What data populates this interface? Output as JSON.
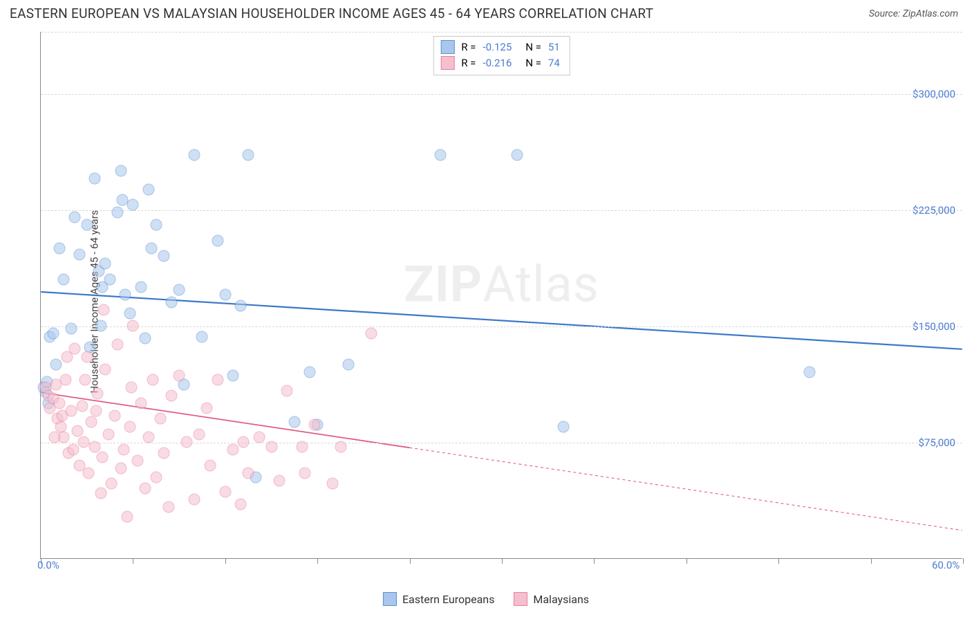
{
  "title": "EASTERN EUROPEAN VS MALAYSIAN HOUSEHOLDER INCOME AGES 45 - 64 YEARS CORRELATION CHART",
  "source": "Source: ZipAtlas.com",
  "ylabel": "Householder Income Ages 45 - 64 years",
  "watermark_a": "ZIP",
  "watermark_b": "Atlas",
  "chart": {
    "type": "scatter",
    "xlim": [
      0,
      60
    ],
    "ylim": [
      0,
      340000
    ],
    "x_left_label": "0.0%",
    "x_right_label": "60.0%",
    "y_ticks": [
      75000,
      150000,
      225000,
      300000
    ],
    "y_tick_labels": [
      "$75,000",
      "$150,000",
      "$225,000",
      "$300,000"
    ],
    "x_tick_positions": [
      0,
      6,
      12,
      18,
      24,
      30,
      36,
      42,
      48,
      54,
      60
    ],
    "grid_color": "#d8d8d8",
    "axis_color": "#888888",
    "ylabel_color": "#4a7bd0",
    "xlabel_color": "#4a7bd0",
    "background": "#ffffff",
    "point_radius": 8.5,
    "point_opacity": 0.55,
    "series": [
      {
        "name": "Eastern Europeans",
        "fill": "#a9c7ec",
        "stroke": "#5b8fd4",
        "line_color": "#3b78c9",
        "line_width": 2.2,
        "line_dash": "none",
        "trend": {
          "x1": 0,
          "y1": 172000,
          "x2": 60,
          "y2": 135000
        },
        "R": "-0.125",
        "N": "51",
        "points": [
          [
            0.2,
            110000
          ],
          [
            0.3,
            107000
          ],
          [
            0.4,
            114000
          ],
          [
            0.5,
            100000
          ],
          [
            0.6,
            143000
          ],
          [
            0.8,
            145000
          ],
          [
            1.0,
            125000
          ],
          [
            1.2,
            200000
          ],
          [
            1.5,
            180000
          ],
          [
            2.0,
            148000
          ],
          [
            2.2,
            220000
          ],
          [
            2.5,
            196000
          ],
          [
            3.0,
            215000
          ],
          [
            3.2,
            136000
          ],
          [
            3.5,
            245000
          ],
          [
            3.8,
            185000
          ],
          [
            4.0,
            175000
          ],
          [
            4.2,
            190000
          ],
          [
            4.5,
            180000
          ],
          [
            5.0,
            223000
          ],
          [
            5.3,
            231000
          ],
          [
            5.5,
            170000
          ],
          [
            5.8,
            158000
          ],
          [
            6.0,
            228000
          ],
          [
            6.5,
            175000
          ],
          [
            7.0,
            238000
          ],
          [
            7.2,
            200000
          ],
          [
            7.5,
            215000
          ],
          [
            8.0,
            195000
          ],
          [
            8.5,
            165000
          ],
          [
            9.0,
            173000
          ],
          [
            9.3,
            112000
          ],
          [
            10.0,
            260000
          ],
          [
            10.5,
            143000
          ],
          [
            11.5,
            205000
          ],
          [
            12.0,
            170000
          ],
          [
            12.5,
            118000
          ],
          [
            13.0,
            163000
          ],
          [
            13.5,
            260000
          ],
          [
            14.0,
            52000
          ],
          [
            16.5,
            88000
          ],
          [
            17.5,
            120000
          ],
          [
            18.0,
            86000
          ],
          [
            20.0,
            125000
          ],
          [
            26.0,
            260000
          ],
          [
            31.0,
            260000
          ],
          [
            34.0,
            85000
          ],
          [
            50.0,
            120000
          ],
          [
            5.2,
            250000
          ],
          [
            3.9,
            150000
          ],
          [
            6.8,
            142000
          ]
        ]
      },
      {
        "name": "Malaysians",
        "fill": "#f5bfcd",
        "stroke": "#e97fa0",
        "line_color": "#e05b84",
        "line_width": 1.8,
        "line_dash": "4 4",
        "solid_until_x": 24,
        "trend": {
          "x1": 0,
          "y1": 107000,
          "x2": 60,
          "y2": 18000
        },
        "R": "-0.216",
        "N": "74",
        "points": [
          [
            0.3,
            110000
          ],
          [
            0.5,
            105000
          ],
          [
            0.6,
            97000
          ],
          [
            0.8,
            103000
          ],
          [
            1.0,
            112000
          ],
          [
            1.1,
            90000
          ],
          [
            1.2,
            100000
          ],
          [
            1.3,
            85000
          ],
          [
            1.4,
            92000
          ],
          [
            1.5,
            78000
          ],
          [
            1.6,
            115000
          ],
          [
            1.8,
            68000
          ],
          [
            2.0,
            95000
          ],
          [
            2.1,
            70000
          ],
          [
            2.2,
            135000
          ],
          [
            2.4,
            82000
          ],
          [
            2.5,
            60000
          ],
          [
            2.7,
            98000
          ],
          [
            2.8,
            75000
          ],
          [
            3.0,
            130000
          ],
          [
            3.1,
            55000
          ],
          [
            3.3,
            88000
          ],
          [
            3.5,
            72000
          ],
          [
            3.7,
            106000
          ],
          [
            3.9,
            42000
          ],
          [
            4.0,
            65000
          ],
          [
            4.2,
            122000
          ],
          [
            4.4,
            80000
          ],
          [
            4.6,
            48000
          ],
          [
            4.8,
            92000
          ],
          [
            5.0,
            138000
          ],
          [
            5.2,
            58000
          ],
          [
            5.4,
            70000
          ],
          [
            5.6,
            27000
          ],
          [
            5.8,
            85000
          ],
          [
            6.0,
            150000
          ],
          [
            6.3,
            63000
          ],
          [
            6.5,
            100000
          ],
          [
            6.8,
            45000
          ],
          [
            7.0,
            78000
          ],
          [
            7.3,
            115000
          ],
          [
            7.5,
            52000
          ],
          [
            7.8,
            90000
          ],
          [
            8.0,
            68000
          ],
          [
            8.3,
            33000
          ],
          [
            8.5,
            105000
          ],
          [
            9.0,
            118000
          ],
          [
            9.5,
            75000
          ],
          [
            10.0,
            38000
          ],
          [
            10.3,
            80000
          ],
          [
            10.8,
            97000
          ],
          [
            11.0,
            60000
          ],
          [
            11.5,
            115000
          ],
          [
            12.0,
            43000
          ],
          [
            12.5,
            70000
          ],
          [
            13.0,
            35000
          ],
          [
            13.2,
            75000
          ],
          [
            13.5,
            55000
          ],
          [
            14.2,
            78000
          ],
          [
            15.0,
            72000
          ],
          [
            15.5,
            50000
          ],
          [
            16.0,
            108000
          ],
          [
            17.0,
            72000
          ],
          [
            17.2,
            55000
          ],
          [
            17.8,
            86000
          ],
          [
            19.0,
            48000
          ],
          [
            19.5,
            72000
          ],
          [
            21.5,
            145000
          ],
          [
            1.7,
            130000
          ],
          [
            2.9,
            115000
          ],
          [
            4.1,
            160000
          ],
          [
            0.9,
            78000
          ],
          [
            3.6,
            95000
          ],
          [
            5.9,
            110000
          ]
        ]
      }
    ],
    "legend_bottom": [
      "Eastern Europeans",
      "Malaysians"
    ]
  }
}
